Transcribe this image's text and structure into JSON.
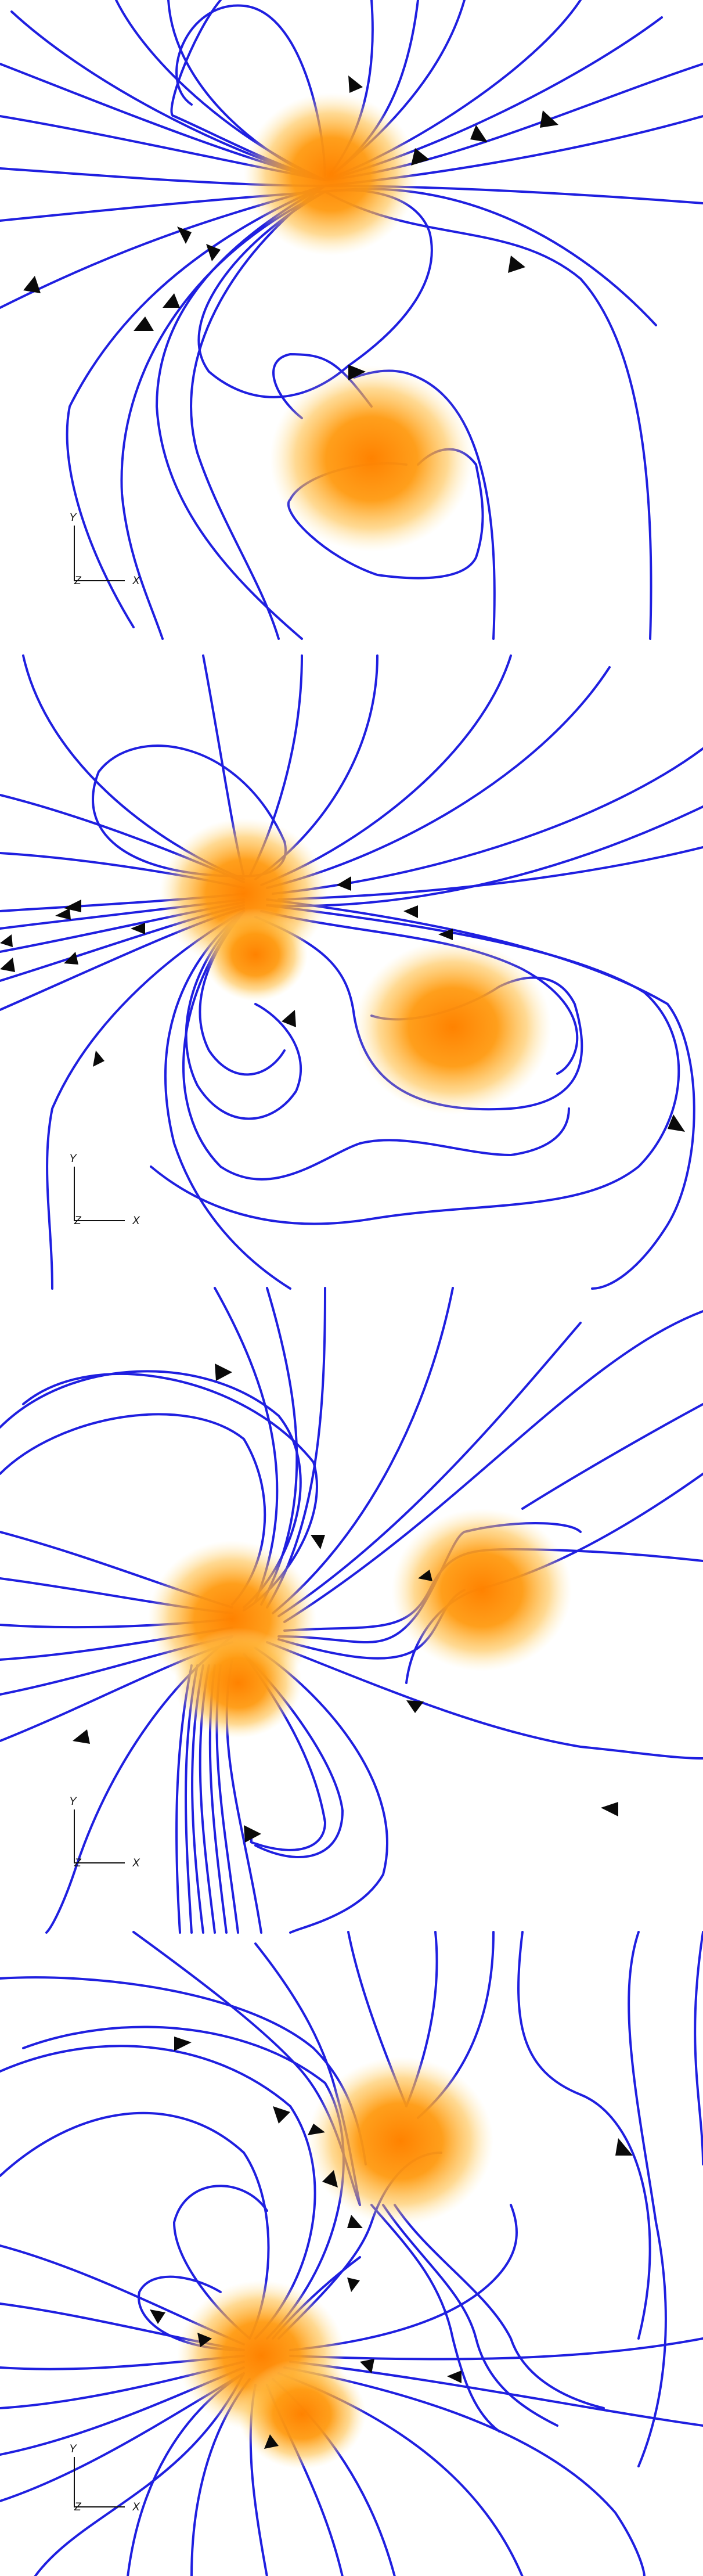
{
  "colors": {
    "field_line": "#1f1fe0",
    "arrow": "#0a0a0a",
    "body_core": "#ff8c00",
    "body_glow": "#ffc24a",
    "background": "#ffffff"
  },
  "panels": [
    {
      "axes": {
        "y": "Y",
        "z": "Z",
        "x": "X"
      }
    },
    {
      "axes": {
        "y": "Y",
        "z": "Z",
        "x": "X"
      }
    },
    {
      "axes": {
        "y": "Y",
        "z": "Z",
        "x": "X"
      }
    },
    {
      "axes": {
        "y": "Y",
        "z": "Z",
        "x": "X"
      }
    }
  ]
}
